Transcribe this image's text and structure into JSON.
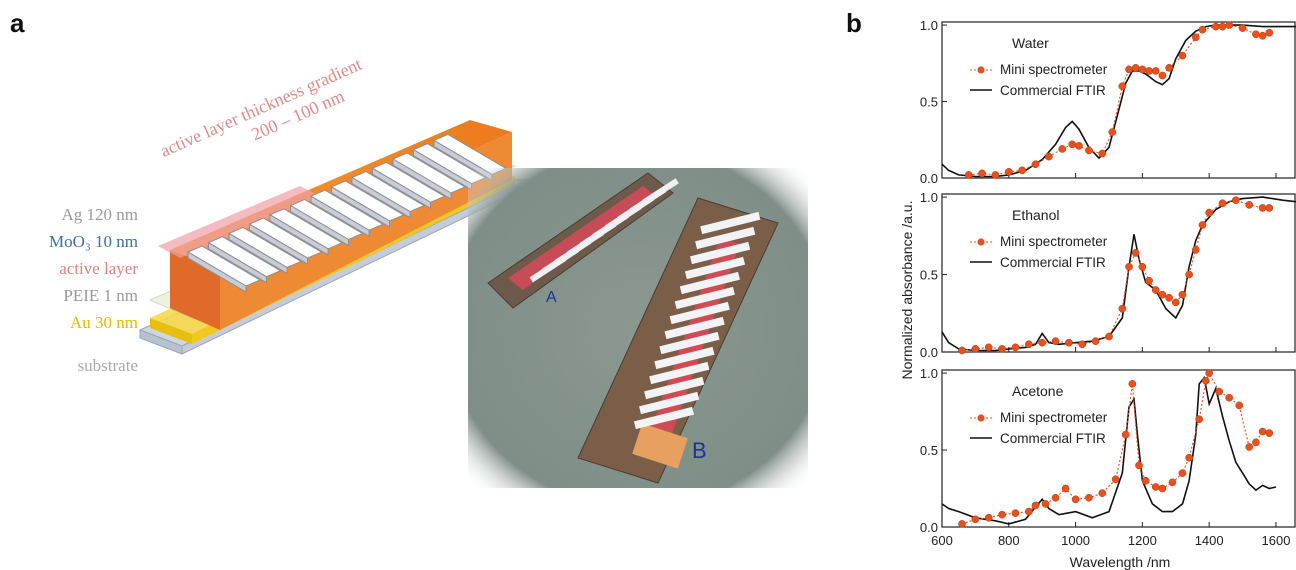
{
  "panels": {
    "a": "a",
    "b": "b"
  },
  "diagram": {
    "gradient_label_line1": "active layer thickness gradient",
    "gradient_label_line2": "200 – 100 nm",
    "layers": [
      {
        "label": "Ag 120 nm",
        "color": "#9a9a9a"
      },
      {
        "label": "MoO₃ 10 nm",
        "color": "#3f6fa6"
      },
      {
        "label": "active layer",
        "color": "#e98080"
      },
      {
        "label": "PEIE 1 nm",
        "color": "#9a9a9a"
      },
      {
        "label": "Au 30 nm",
        "color": "#e6b800"
      },
      {
        "label": "substrate",
        "color": "#a9a9a9"
      }
    ]
  },
  "photo": {
    "device_labels": [
      "A",
      "B"
    ]
  },
  "shared_axes": {
    "ylabel": "Normalized absorbance /a.u.",
    "xlabel": "Wavelength /nm",
    "xticks": [
      "600",
      "800",
      "1000",
      "1200",
      "1400",
      "1600"
    ],
    "yticks": [
      "0.0",
      "0.5",
      "1.0"
    ]
  },
  "legend_labels": {
    "spectrometer": "Mini spectrometer",
    "ftir": "Commercial FTIR"
  },
  "colors": {
    "spectrometer": "#e8501e",
    "ftir": "#111111"
  },
  "chart_data": [
    {
      "type": "line",
      "title": "Water",
      "xlim": [
        600,
        1660
      ],
      "ylim": [
        0,
        1.02
      ],
      "series": [
        {
          "name": "Mini spectrometer",
          "x": [
            680,
            720,
            760,
            800,
            840,
            880,
            920,
            960,
            990,
            1010,
            1040,
            1080,
            1110,
            1140,
            1160,
            1180,
            1200,
            1220,
            1240,
            1260,
            1280,
            1320,
            1360,
            1380,
            1420,
            1440,
            1460,
            1500,
            1540,
            1560,
            1580
          ],
          "y": [
            0.02,
            0.03,
            0.02,
            0.04,
            0.05,
            0.09,
            0.14,
            0.19,
            0.22,
            0.21,
            0.18,
            0.16,
            0.3,
            0.6,
            0.71,
            0.72,
            0.71,
            0.7,
            0.7,
            0.67,
            0.72,
            0.8,
            0.92,
            0.97,
            0.99,
            0.99,
            1.0,
            0.98,
            0.94,
            0.93,
            0.95
          ]
        },
        {
          "name": "Commercial FTIR",
          "x": [
            600,
            620,
            650,
            700,
            760,
            800,
            850,
            900,
            940,
            970,
            990,
            1010,
            1040,
            1070,
            1100,
            1130,
            1150,
            1170,
            1190,
            1210,
            1240,
            1260,
            1280,
            1300,
            1330,
            1360,
            1390,
            1420,
            1460,
            1500,
            1560,
            1620,
            1660
          ],
          "y": [
            0.09,
            0.05,
            0.02,
            0.01,
            0.01,
            0.02,
            0.05,
            0.12,
            0.22,
            0.33,
            0.37,
            0.32,
            0.2,
            0.13,
            0.2,
            0.45,
            0.62,
            0.7,
            0.7,
            0.68,
            0.63,
            0.61,
            0.65,
            0.78,
            0.9,
            0.96,
            0.99,
            1.0,
            1.0,
            1.0,
            0.99,
            0.99,
            0.99
          ]
        }
      ]
    },
    {
      "type": "line",
      "title": "Ethanol",
      "xlim": [
        600,
        1660
      ],
      "ylim": [
        0,
        1.02
      ],
      "series": [
        {
          "name": "Mini spectrometer",
          "x": [
            660,
            700,
            740,
            780,
            820,
            860,
            900,
            940,
            980,
            1020,
            1060,
            1100,
            1140,
            1160,
            1180,
            1200,
            1220,
            1240,
            1260,
            1280,
            1300,
            1320,
            1340,
            1360,
            1380,
            1400,
            1440,
            1480,
            1520,
            1560,
            1580
          ],
          "y": [
            0.01,
            0.02,
            0.03,
            0.02,
            0.03,
            0.05,
            0.06,
            0.07,
            0.06,
            0.05,
            0.07,
            0.1,
            0.28,
            0.55,
            0.64,
            0.55,
            0.46,
            0.4,
            0.37,
            0.35,
            0.32,
            0.37,
            0.5,
            0.66,
            0.82,
            0.9,
            0.96,
            0.98,
            0.95,
            0.93,
            0.93
          ]
        },
        {
          "name": "Commercial FTIR",
          "x": [
            600,
            620,
            650,
            700,
            760,
            800,
            850,
            880,
            900,
            920,
            950,
            1000,
            1050,
            1100,
            1140,
            1160,
            1175,
            1190,
            1210,
            1240,
            1270,
            1300,
            1320,
            1340,
            1360,
            1380,
            1420,
            1460,
            1500,
            1560,
            1620,
            1660
          ],
          "y": [
            0.13,
            0.06,
            0.02,
            0.01,
            0.01,
            0.02,
            0.03,
            0.05,
            0.12,
            0.06,
            0.05,
            0.06,
            0.07,
            0.1,
            0.22,
            0.55,
            0.76,
            0.6,
            0.45,
            0.4,
            0.28,
            0.22,
            0.3,
            0.55,
            0.72,
            0.82,
            0.92,
            0.97,
            0.99,
            1.0,
            0.98,
            0.97
          ]
        }
      ]
    },
    {
      "type": "line",
      "title": "Acetone",
      "xlim": [
        600,
        1660
      ],
      "ylim": [
        0,
        1.02
      ],
      "series": [
        {
          "name": "Mini spectrometer",
          "x": [
            660,
            700,
            740,
            780,
            820,
            860,
            880,
            910,
            940,
            970,
            1000,
            1040,
            1080,
            1120,
            1150,
            1170,
            1190,
            1210,
            1240,
            1260,
            1290,
            1320,
            1340,
            1370,
            1390,
            1400,
            1430,
            1460,
            1490,
            1520,
            1540,
            1560,
            1580
          ],
          "y": [
            0.02,
            0.05,
            0.06,
            0.08,
            0.09,
            0.1,
            0.14,
            0.15,
            0.19,
            0.25,
            0.18,
            0.19,
            0.22,
            0.31,
            0.6,
            0.93,
            0.4,
            0.3,
            0.26,
            0.25,
            0.29,
            0.35,
            0.45,
            0.7,
            0.95,
            1.0,
            0.88,
            0.84,
            0.79,
            0.52,
            0.55,
            0.62,
            0.61
          ]
        },
        {
          "name": "Commercial FTIR",
          "x": [
            600,
            620,
            650,
            700,
            760,
            800,
            850,
            880,
            900,
            920,
            950,
            1000,
            1050,
            1100,
            1140,
            1160,
            1175,
            1185,
            1200,
            1230,
            1260,
            1290,
            1320,
            1340,
            1360,
            1370,
            1385,
            1400,
            1420,
            1440,
            1460,
            1480,
            1500,
            1520,
            1540,
            1560,
            1580,
            1600
          ],
          "y": [
            0.15,
            0.12,
            0.1,
            0.06,
            0.04,
            0.02,
            0.05,
            0.13,
            0.18,
            0.12,
            0.08,
            0.1,
            0.06,
            0.1,
            0.35,
            0.78,
            0.83,
            0.6,
            0.3,
            0.15,
            0.1,
            0.1,
            0.15,
            0.3,
            0.6,
            0.93,
            0.97,
            0.8,
            0.9,
            0.72,
            0.56,
            0.42,
            0.35,
            0.28,
            0.24,
            0.27,
            0.25,
            0.26
          ]
        }
      ]
    }
  ]
}
